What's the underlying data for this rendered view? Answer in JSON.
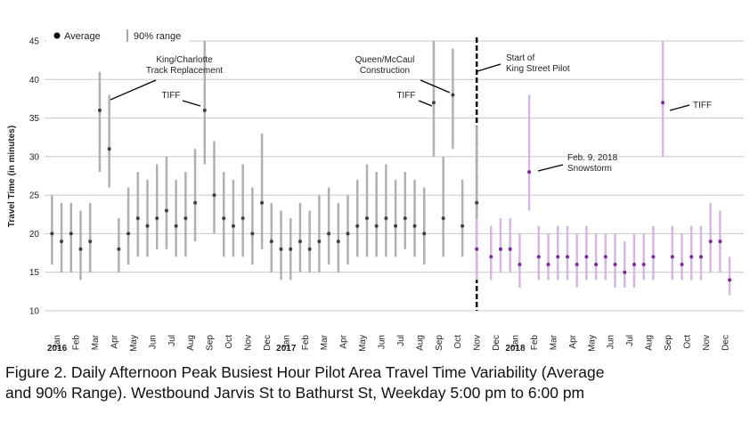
{
  "chart_data": {
    "type": "range-dot",
    "y_label": "Travel Time (in minutes)",
    "legend": [
      "Average",
      "90% range"
    ],
    "caption": [
      "Figure 2. Daily Afternoon Peak Busiest Hour Pilot Area Travel Time Variability (Average",
      "and 90% Range). Westbound Jarvis St to Bathurst St, Weekday 5:00 pm to 6:00 pm"
    ],
    "categories": [
      "Jan",
      "Feb",
      "Mar",
      "Apr",
      "May",
      "Jun",
      "Jul",
      "Aug",
      "Sep",
      "Oct",
      "Nov",
      "Dec",
      "Jan",
      "Feb",
      "Mar",
      "Apr",
      "May",
      "Jun",
      "Jul",
      "Aug",
      "Sep",
      "Oct",
      "Nov",
      "Dec",
      "Jan",
      "Feb",
      "Mar",
      "Apr",
      "May",
      "Jun",
      "Jul",
      "Aug",
      "Sep",
      "Oct",
      "Nov",
      "Dec"
    ],
    "years": [
      "2016",
      "2017",
      "2018"
    ],
    "ylim": [
      10,
      45
    ],
    "yticks": [
      10,
      15,
      20,
      25,
      30,
      35,
      40,
      45
    ],
    "grid": true,
    "series": [
      {
        "color": "#404040",
        "range_color": "#b0b0b0",
        "x": [
          "2016-01",
          "2016-01",
          "2016-02",
          "2016-02",
          "2016-03",
          "2016-03",
          "2016-04",
          "2016-04",
          "2016-05",
          "2016-05",
          "2016-06",
          "2016-06",
          "2016-07",
          "2016-07",
          "2016-08",
          "2016-08",
          "2016-09",
          "2016-09",
          "2016-10",
          "2016-10",
          "2016-11",
          "2016-11",
          "2016-12",
          "2016-12",
          "2017-01",
          "2017-01",
          "2017-02",
          "2017-02",
          "2017-03",
          "2017-03",
          "2017-04",
          "2017-04",
          "2017-05",
          "2017-05",
          "2017-06",
          "2017-06",
          "2017-07",
          "2017-07",
          "2017-08",
          "2017-08",
          "2017-09",
          "2017-09",
          "2017-10",
          "2017-10",
          "2017-11"
        ],
        "values": [
          20,
          19,
          20,
          18,
          19,
          36,
          31,
          18,
          20,
          22,
          21,
          22,
          23,
          21,
          22,
          24,
          36,
          25,
          22,
          21,
          22,
          20,
          24,
          19,
          18,
          18,
          19,
          18,
          19,
          20,
          19,
          20,
          21,
          22,
          21,
          22,
          21,
          22,
          21,
          20,
          37,
          22,
          38,
          21,
          24
        ],
        "low": [
          16,
          15,
          15,
          14,
          15,
          28,
          26,
          15,
          16,
          17,
          17,
          18,
          18,
          17,
          17,
          19,
          29,
          20,
          17,
          17,
          17,
          16,
          18,
          15,
          14,
          14,
          15,
          15,
          15,
          16,
          15,
          16,
          17,
          17,
          17,
          17,
          17,
          18,
          17,
          16,
          30,
          17,
          31,
          17,
          19
        ],
        "high": [
          25,
          24,
          24,
          23,
          24,
          41,
          38,
          22,
          26,
          28,
          27,
          29,
          30,
          27,
          28,
          31,
          45,
          32,
          28,
          27,
          29,
          26,
          33,
          24,
          23,
          22,
          24,
          23,
          25,
          26,
          24,
          25,
          27,
          29,
          28,
          29,
          27,
          28,
          27,
          26,
          45,
          30,
          44,
          27,
          34
        ]
      },
      {
        "color": "#7a2a9a",
        "range_color": "#d5b8e0",
        "x": [
          "2017-11",
          "2017-12",
          "2017-12",
          "2018-01",
          "2018-01",
          "2018-02",
          "2018-02",
          "2018-03",
          "2018-03",
          "2018-04",
          "2018-04",
          "2018-05",
          "2018-05",
          "2018-06",
          "2018-06",
          "2018-07",
          "2018-07",
          "2018-08",
          "2018-08",
          "2018-09",
          "2018-09",
          "2018-10",
          "2018-10",
          "2018-11",
          "2018-11",
          "2018-12",
          "2018-12"
        ],
        "values": [
          18,
          17,
          18,
          18,
          16,
          28,
          17,
          16,
          17,
          17,
          16,
          17,
          16,
          17,
          16,
          15,
          16,
          16,
          17,
          37,
          17,
          16,
          17,
          17,
          19,
          19,
          14
        ],
        "low": [
          14,
          14,
          15,
          15,
          13,
          23,
          14,
          14,
          14,
          14,
          13,
          14,
          14,
          14,
          13,
          13,
          13,
          14,
          14,
          30,
          14,
          14,
          14,
          14,
          15,
          15,
          12
        ],
        "high": [
          22,
          21,
          22,
          22,
          20,
          38,
          21,
          20,
          21,
          21,
          20,
          21,
          20,
          20,
          20,
          19,
          20,
          20,
          21,
          45,
          21,
          20,
          21,
          21,
          24,
          23,
          17
        ]
      }
    ],
    "annotations": [
      {
        "text": [
          "King/Charlotte",
          "Track Replacement"
        ]
      },
      {
        "text": [
          "TIFF"
        ]
      },
      {
        "text": [
          "Queen/McCaul",
          "Construction"
        ]
      },
      {
        "text": [
          "TIFF"
        ]
      },
      {
        "text": [
          "Start of",
          "King Street Pilot"
        ],
        "x": "2017-11"
      },
      {
        "text": [
          "Feb. 9, 2018",
          "Snowstorm"
        ]
      },
      {
        "text": [
          "TIFF"
        ]
      }
    ]
  }
}
